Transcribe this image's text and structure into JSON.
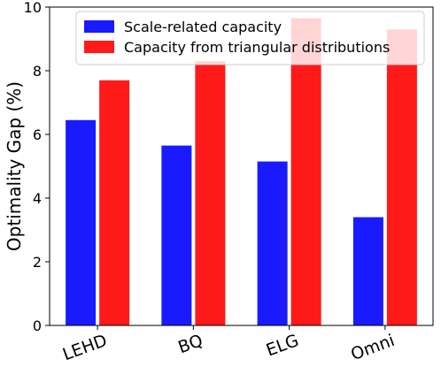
{
  "chart_data": {
    "type": "bar",
    "categories": [
      "LEHD",
      "BQ",
      "ELG",
      "Omni"
    ],
    "series": [
      {
        "name": "Scale-related capacity",
        "color": "#1a1aff",
        "values": [
          6.45,
          5.65,
          5.15,
          3.4
        ]
      },
      {
        "name": "Capacity from triangular distributions",
        "color": "#ff1a1a",
        "values": [
          7.7,
          8.3,
          9.65,
          9.3
        ]
      }
    ],
    "xlabel": "",
    "ylabel": "Optimality Gap (%)",
    "ylim": [
      0,
      10
    ],
    "yticks": [
      0,
      2,
      4,
      6,
      8,
      10
    ],
    "grid": false,
    "legend_position": "top-right"
  }
}
